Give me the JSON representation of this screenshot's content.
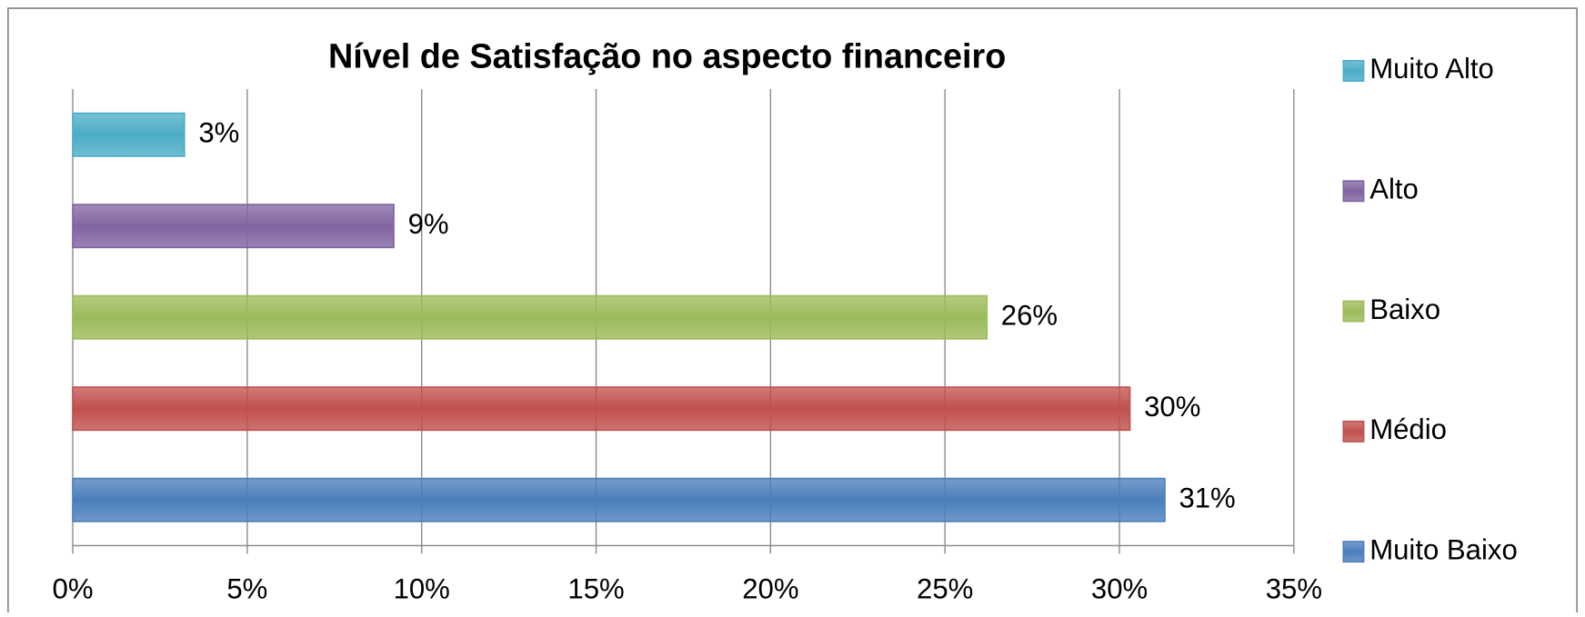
{
  "chart_data": {
    "type": "bar",
    "orientation": "horizontal",
    "title": "Nível de Satisfação no aspecto financeiro",
    "series": [
      {
        "name": "Muito Baixo",
        "color": "#4a7ebb",
        "values": [
          31.3
        ],
        "value_labels": [
          "31%"
        ]
      },
      {
        "name": "Médio",
        "color": "#c0504d",
        "values": [
          30.3
        ],
        "value_labels": [
          "30%"
        ]
      },
      {
        "name": "Baixo",
        "color": "#9bbb59",
        "values": [
          26.2
        ],
        "value_labels": [
          "26%"
        ]
      },
      {
        "name": "Alto",
        "color": "#8064a2",
        "values": [
          9.2
        ],
        "value_labels": [
          "9%"
        ]
      },
      {
        "name": "Muito Alto",
        "color": "#4bacc6",
        "values": [
          3.2
        ],
        "value_labels": [
          "3%"
        ]
      }
    ],
    "xlim": [
      0,
      35
    ],
    "xticks": [
      {
        "value": 0,
        "label": "0%"
      },
      {
        "value": 5,
        "label": "5%"
      },
      {
        "value": 10,
        "label": "10%"
      },
      {
        "value": 15,
        "label": "15%"
      },
      {
        "value": 20,
        "label": "20%"
      },
      {
        "value": 25,
        "label": "25%"
      },
      {
        "value": 30,
        "label": "30%"
      },
      {
        "value": 35,
        "label": "35%"
      }
    ],
    "grid": true,
    "legend": "right"
  }
}
